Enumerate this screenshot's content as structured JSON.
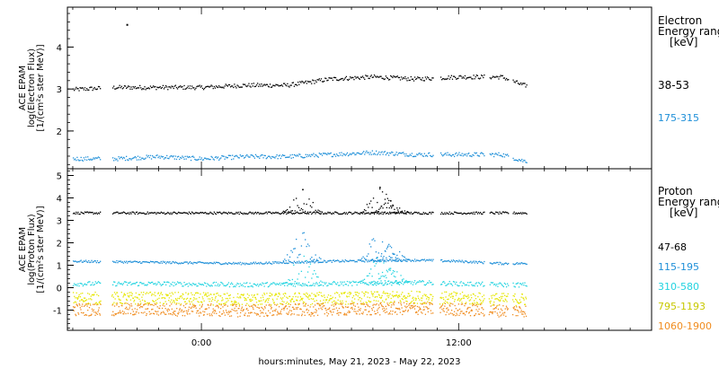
{
  "chart_data": [
    {
      "type": "scatter",
      "panel": "electron",
      "ylabel_lines": [
        "ACE EPAM",
        "log(Electron Flux)",
        "[1/(cm²s ster MeV)]"
      ],
      "legend_title": [
        "Electron",
        "Energy range",
        "[keV]"
      ],
      "yticks": [
        2,
        3,
        4
      ],
      "ylim": [
        1.1,
        4.95
      ],
      "series": [
        {
          "name": "38-53",
          "color": "#000000",
          "x": [
            -6,
            -4,
            -2,
            0,
            2,
            4,
            6,
            8,
            10,
            12,
            14,
            15
          ],
          "y": [
            3.0,
            3.05,
            3.05,
            3.05,
            3.1,
            3.1,
            3.25,
            3.3,
            3.25,
            3.3,
            3.3,
            3.1
          ]
        },
        {
          "name": "175-315",
          "color": "#1e8fd8",
          "x": [
            -6,
            -4,
            -2,
            0,
            2,
            4,
            6,
            8,
            10,
            12,
            14,
            15
          ],
          "y": [
            1.35,
            1.35,
            1.4,
            1.35,
            1.4,
            1.4,
            1.45,
            1.5,
            1.45,
            1.45,
            1.45,
            1.3
          ]
        }
      ],
      "outliers": [
        {
          "x": -3.5,
          "y": 4.55
        }
      ]
    },
    {
      "type": "scatter",
      "panel": "proton",
      "ylabel_lines": [
        "ACE EPAM",
        "log(Proton Flux)",
        "[1/(cm²s ster MeV)]"
      ],
      "legend_title": [
        "Proton",
        "Energy range",
        "[keV]"
      ],
      "yticks": [
        -1,
        0,
        1,
        2,
        3,
        4,
        5
      ],
      "ylim": [
        -1.9,
        5.3
      ],
      "series": [
        {
          "name": "47-68",
          "color": "#000000",
          "x": [
            -6,
            -2,
            2,
            6,
            10,
            12,
            14,
            15
          ],
          "y": [
            3.35,
            3.35,
            3.35,
            3.35,
            3.35,
            3.35,
            3.35,
            3.35
          ]
        },
        {
          "name": "115-195",
          "color": "#1e8fd8",
          "x": [
            -6,
            -2,
            2,
            6,
            10,
            12,
            14,
            15
          ],
          "y": [
            1.2,
            1.15,
            1.1,
            1.2,
            1.25,
            1.2,
            1.1,
            1.1
          ]
        },
        {
          "name": "310-580",
          "color": "#22d3e0",
          "x": [
            -6,
            -2,
            2,
            6,
            10,
            12,
            14,
            15
          ],
          "y": [
            0.2,
            0.2,
            0.15,
            0.2,
            0.25,
            0.2,
            0.15,
            0.15
          ]
        },
        {
          "name": "795-1193",
          "color": "#e6e600",
          "x": [
            -6,
            -2,
            2,
            6,
            10,
            12,
            14,
            15
          ],
          "y": [
            -0.45,
            -0.45,
            -0.5,
            -0.45,
            -0.4,
            -0.45,
            -0.5,
            -0.5
          ]
        },
        {
          "name": "1060-1900",
          "color": "#f08c1e",
          "x": [
            -6,
            -2,
            2,
            6,
            10,
            12,
            14,
            15
          ],
          "y": [
            -0.95,
            -0.95,
            -1.0,
            -0.95,
            -0.9,
            -0.95,
            -1.0,
            -1.0
          ]
        }
      ],
      "spikes": [
        {
          "x": 4.7,
          "y": 4.4
        },
        {
          "x": 8.3,
          "y": 4.5
        },
        {
          "x": 8.8,
          "y": 3.9
        }
      ]
    }
  ],
  "xaxis": {
    "tick_labels": [
      "0:00",
      "12:00"
    ],
    "tick_hours": [
      0,
      12
    ],
    "xlim_hours": [
      -6.25,
      21
    ],
    "label": "hours:minutes, May 21, 2023 - May 22, 2023"
  }
}
